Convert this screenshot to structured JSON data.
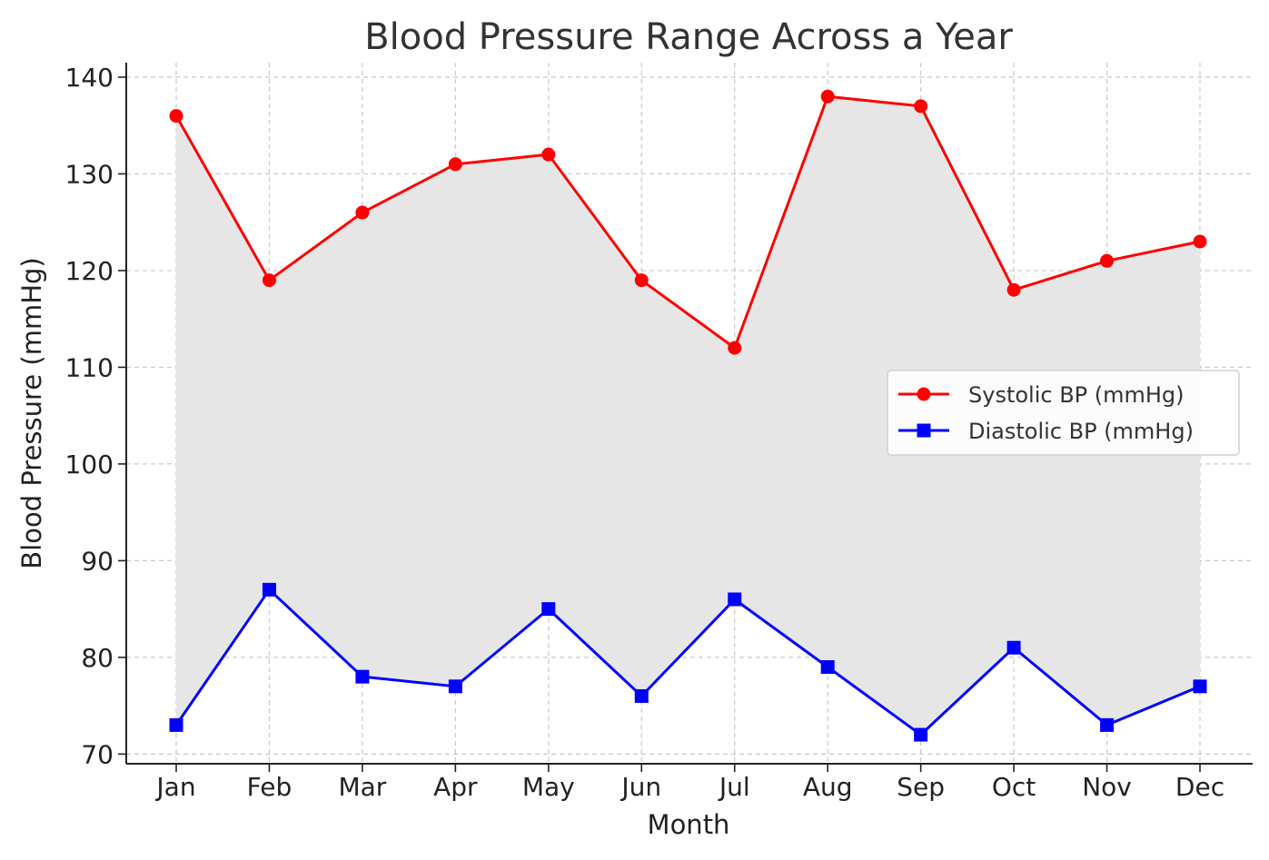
{
  "chart_data": {
    "type": "line",
    "title": "Blood Pressure Range Across a Year",
    "xlabel": "Month",
    "ylabel": "Blood Pressure (mmHg)",
    "categories": [
      "Jan",
      "Feb",
      "Mar",
      "Apr",
      "May",
      "Jun",
      "Jul",
      "Aug",
      "Sep",
      "Oct",
      "Nov",
      "Dec"
    ],
    "ylim": [
      69,
      141.5
    ],
    "yticks": [
      70,
      80,
      90,
      100,
      110,
      120,
      130,
      140
    ],
    "grid": true,
    "legend_position": "center-right",
    "fill_between": {
      "color": "#e6e6e6"
    },
    "series": [
      {
        "name": "Systolic BP (mmHg)",
        "color": "#ff0000",
        "marker": "circle",
        "values": [
          136,
          119,
          126,
          131,
          132,
          119,
          112,
          138,
          137,
          118,
          121,
          123
        ]
      },
      {
        "name": "Diastolic BP (mmHg)",
        "color": "#0000ff",
        "marker": "square",
        "values": [
          73,
          87,
          78,
          77,
          85,
          76,
          86,
          79,
          72,
          81,
          73,
          77
        ]
      }
    ]
  }
}
